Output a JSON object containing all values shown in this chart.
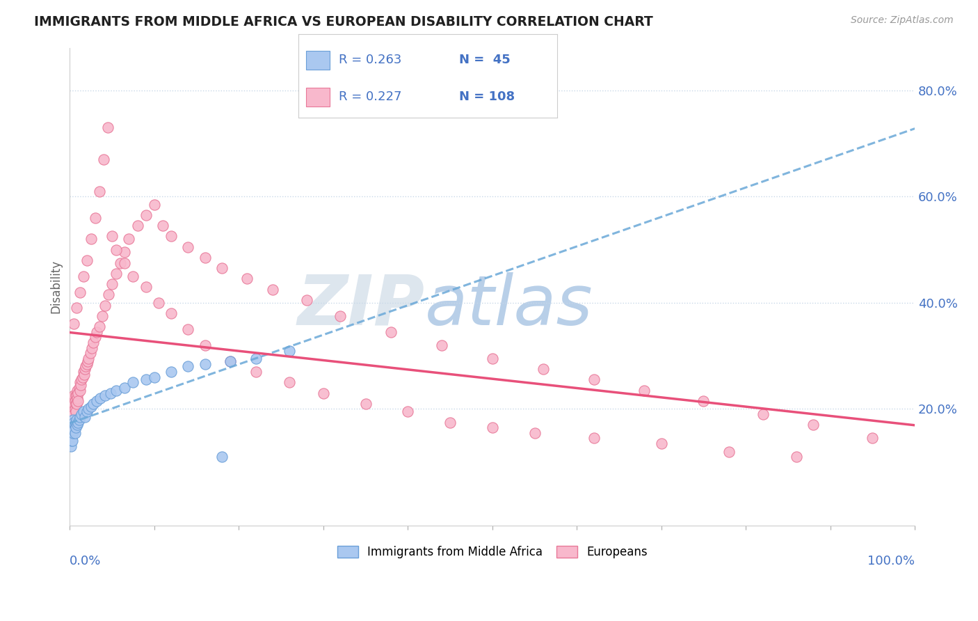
{
  "title": "IMMIGRANTS FROM MIDDLE AFRICA VS EUROPEAN DISABILITY CORRELATION CHART",
  "source_text": "Source: ZipAtlas.com",
  "ylabel": "Disability",
  "xlim": [
    0.0,
    1.0
  ],
  "ylim": [
    -0.02,
    0.88
  ],
  "series1_label": "Immigrants from Middle Africa",
  "series1_color": "#aac8f0",
  "series1_edge_color": "#6a9fd8",
  "series1_R": 0.263,
  "series1_N": 45,
  "series2_label": "Europeans",
  "series2_color": "#f8b8cc",
  "series2_edge_color": "#e87898",
  "series2_R": 0.227,
  "series2_N": 108,
  "trend1_color": "#6aa8d8",
  "trend2_color": "#e8507a",
  "background_color": "#ffffff",
  "grid_color": "#c8d8e8",
  "title_color": "#202020",
  "watermark_color": "#d8e4f0",
  "series1_x": [
    0.001,
    0.001,
    0.002,
    0.002,
    0.002,
    0.003,
    0.003,
    0.003,
    0.004,
    0.004,
    0.004,
    0.005,
    0.005,
    0.006,
    0.006,
    0.007,
    0.007,
    0.008,
    0.009,
    0.01,
    0.011,
    0.012,
    0.014,
    0.016,
    0.018,
    0.02,
    0.022,
    0.025,
    0.028,
    0.032,
    0.036,
    0.042,
    0.048,
    0.055,
    0.065,
    0.075,
    0.09,
    0.1,
    0.12,
    0.14,
    0.16,
    0.19,
    0.22,
    0.26,
    0.18
  ],
  "series1_y": [
    0.145,
    0.13,
    0.16,
    0.155,
    0.14,
    0.165,
    0.17,
    0.14,
    0.155,
    0.18,
    0.165,
    0.175,
    0.16,
    0.17,
    0.155,
    0.175,
    0.165,
    0.18,
    0.17,
    0.175,
    0.18,
    0.185,
    0.19,
    0.195,
    0.185,
    0.195,
    0.2,
    0.205,
    0.21,
    0.215,
    0.22,
    0.225,
    0.23,
    0.235,
    0.24,
    0.25,
    0.255,
    0.26,
    0.27,
    0.28,
    0.285,
    0.29,
    0.295,
    0.31,
    0.11
  ],
  "series2_x": [
    0.001,
    0.001,
    0.002,
    0.002,
    0.002,
    0.002,
    0.003,
    0.003,
    0.003,
    0.003,
    0.004,
    0.004,
    0.004,
    0.005,
    0.005,
    0.005,
    0.006,
    0.006,
    0.007,
    0.007,
    0.007,
    0.008,
    0.008,
    0.009,
    0.009,
    0.01,
    0.01,
    0.011,
    0.012,
    0.012,
    0.013,
    0.014,
    0.015,
    0.016,
    0.017,
    0.018,
    0.019,
    0.02,
    0.021,
    0.022,
    0.024,
    0.026,
    0.028,
    0.03,
    0.032,
    0.035,
    0.038,
    0.042,
    0.046,
    0.05,
    0.055,
    0.06,
    0.065,
    0.07,
    0.08,
    0.09,
    0.1,
    0.11,
    0.12,
    0.14,
    0.16,
    0.18,
    0.21,
    0.24,
    0.28,
    0.32,
    0.38,
    0.44,
    0.5,
    0.56,
    0.62,
    0.68,
    0.75,
    0.82,
    0.88,
    0.95,
    0.005,
    0.008,
    0.012,
    0.016,
    0.02,
    0.025,
    0.03,
    0.035,
    0.04,
    0.045,
    0.05,
    0.055,
    0.065,
    0.075,
    0.09,
    0.105,
    0.12,
    0.14,
    0.16,
    0.19,
    0.22,
    0.26,
    0.3,
    0.35,
    0.4,
    0.45,
    0.5,
    0.55,
    0.62,
    0.7,
    0.78,
    0.86
  ],
  "series2_y": [
    0.155,
    0.18,
    0.17,
    0.19,
    0.21,
    0.165,
    0.18,
    0.195,
    0.22,
    0.175,
    0.185,
    0.2,
    0.215,
    0.19,
    0.21,
    0.225,
    0.2,
    0.215,
    0.21,
    0.225,
    0.195,
    0.225,
    0.21,
    0.22,
    0.235,
    0.23,
    0.215,
    0.24,
    0.235,
    0.25,
    0.245,
    0.255,
    0.26,
    0.27,
    0.265,
    0.275,
    0.28,
    0.285,
    0.29,
    0.295,
    0.305,
    0.315,
    0.325,
    0.335,
    0.345,
    0.355,
    0.375,
    0.395,
    0.415,
    0.435,
    0.455,
    0.475,
    0.495,
    0.52,
    0.545,
    0.565,
    0.585,
    0.545,
    0.525,
    0.505,
    0.485,
    0.465,
    0.445,
    0.425,
    0.405,
    0.375,
    0.345,
    0.32,
    0.295,
    0.275,
    0.255,
    0.235,
    0.215,
    0.19,
    0.17,
    0.145,
    0.36,
    0.39,
    0.42,
    0.45,
    0.48,
    0.52,
    0.56,
    0.61,
    0.67,
    0.73,
    0.525,
    0.5,
    0.475,
    0.45,
    0.43,
    0.4,
    0.38,
    0.35,
    0.32,
    0.29,
    0.27,
    0.25,
    0.23,
    0.21,
    0.195,
    0.175,
    0.165,
    0.155,
    0.145,
    0.135,
    0.12,
    0.11
  ]
}
